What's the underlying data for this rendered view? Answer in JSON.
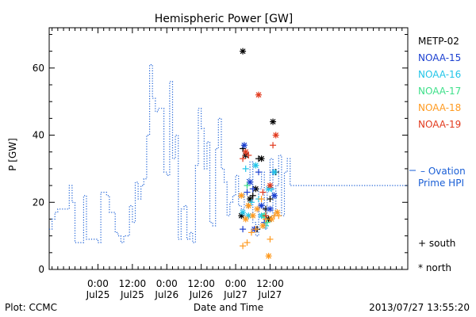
{
  "chart_data": {
    "type": "line",
    "title": "Hemispheric Power [GW]",
    "xlabel": "Date and Time",
    "ylabel": "P [GW]",
    "ylim": [
      0,
      72
    ],
    "xlim_hours": [
      -17,
      108
    ],
    "yticks": [
      0,
      20,
      40,
      60
    ],
    "xticks": [
      {
        "h": 0,
        "line1": "0:00",
        "line2": "Jul25"
      },
      {
        "h": 12,
        "line1": "12:00",
        "line2": "Jul25"
      },
      {
        "h": 24,
        "line1": "0:00",
        "line2": "Jul26"
      },
      {
        "h": 36,
        "line1": "12:00",
        "line2": "Jul26"
      },
      {
        "h": 48,
        "line1": "0:00",
        "line2": "Jul27"
      },
      {
        "h": 60,
        "line1": "12:00",
        "line2": "Jul27"
      }
    ],
    "grid": false,
    "ovation": {
      "name": "Ovation Prime HPI",
      "legend_line1": "– Ovation",
      "legend_line2": "Prime HPI",
      "color": "#1a5fd6",
      "step_points": [
        [
          -17,
          12
        ],
        [
          -16,
          15
        ],
        [
          -15,
          17
        ],
        [
          -14,
          18
        ],
        [
          -13,
          18
        ],
        [
          -11,
          18
        ],
        [
          -10,
          25
        ],
        [
          -9,
          20
        ],
        [
          -8,
          8
        ],
        [
          -6,
          8
        ],
        [
          -5,
          22
        ],
        [
          -4,
          9
        ],
        [
          -1,
          9
        ],
        [
          0,
          8
        ],
        [
          1,
          23
        ],
        [
          3,
          22
        ],
        [
          4,
          17
        ],
        [
          6,
          11
        ],
        [
          7,
          10
        ],
        [
          8,
          8
        ],
        [
          9,
          10
        ],
        [
          11,
          19
        ],
        [
          12,
          14
        ],
        [
          13,
          26
        ],
        [
          14,
          21
        ],
        [
          15,
          25
        ],
        [
          16,
          27
        ],
        [
          17,
          40
        ],
        [
          18,
          61
        ],
        [
          19,
          51
        ],
        [
          20,
          47
        ],
        [
          21,
          48
        ],
        [
          23,
          29
        ],
        [
          24,
          28
        ],
        [
          25,
          56
        ],
        [
          26,
          33
        ],
        [
          27,
          40
        ],
        [
          28,
          9
        ],
        [
          29,
          18
        ],
        [
          30,
          19
        ],
        [
          31,
          9
        ],
        [
          32,
          11
        ],
        [
          33,
          8
        ],
        [
          34,
          31
        ],
        [
          35,
          48
        ],
        [
          36,
          42
        ],
        [
          37,
          30
        ],
        [
          38,
          38
        ],
        [
          39,
          14
        ],
        [
          40,
          13
        ],
        [
          41,
          36
        ],
        [
          42,
          45
        ],
        [
          43,
          30
        ],
        [
          44,
          26
        ],
        [
          45,
          16
        ],
        [
          46,
          20
        ],
        [
          47,
          22
        ],
        [
          48,
          28
        ],
        [
          49,
          19
        ],
        [
          50,
          18
        ],
        [
          51,
          23
        ],
        [
          52,
          27
        ],
        [
          53,
          32
        ],
        [
          54,
          14
        ],
        [
          55,
          10
        ],
        [
          56,
          24
        ],
        [
          57,
          29
        ],
        [
          58,
          12
        ],
        [
          59,
          24
        ],
        [
          60,
          33
        ],
        [
          61,
          16
        ],
        [
          62,
          25
        ],
        [
          63,
          34
        ],
        [
          64,
          16
        ],
        [
          65,
          29
        ],
        [
          66,
          33
        ],
        [
          67,
          25
        ],
        [
          68,
          25
        ]
      ]
    },
    "series": [
      {
        "name": "METP-02",
        "color": "#000000",
        "points": [
          [
            50.5,
            65
          ],
          [
            50.5,
            36
          ],
          [
            51.5,
            34
          ],
          [
            52.5,
            19
          ],
          [
            53,
            21
          ],
          [
            54,
            22
          ],
          [
            55,
            24
          ],
          [
            56,
            33
          ],
          [
            57,
            33
          ],
          [
            58.5,
            18
          ],
          [
            59.5,
            15
          ],
          [
            60,
            21
          ],
          [
            61,
            44
          ],
          [
            62,
            29
          ],
          [
            50,
            16
          ],
          [
            55.5,
            12
          ]
        ]
      },
      {
        "name": "NOAA-15",
        "color": "#1a3fd0",
        "points": [
          [
            50.5,
            12
          ],
          [
            51,
            37
          ],
          [
            52,
            23
          ],
          [
            53,
            26
          ],
          [
            54,
            24
          ],
          [
            54.5,
            12
          ],
          [
            56,
            29
          ],
          [
            57,
            19
          ],
          [
            58,
            14
          ],
          [
            60,
            18
          ],
          [
            61,
            29
          ],
          [
            61.5,
            22
          ]
        ]
      },
      {
        "name": "NOAA-16",
        "color": "#22c5e8",
        "points": [
          [
            50.5,
            17
          ],
          [
            51.5,
            30
          ],
          [
            52.5,
            16
          ],
          [
            53.5,
            20
          ],
          [
            55,
            31
          ],
          [
            56,
            21
          ],
          [
            57,
            16
          ],
          [
            58.5,
            13
          ],
          [
            59.5,
            24
          ],
          [
            60.5,
            24
          ],
          [
            61.5,
            29
          ]
        ]
      },
      {
        "name": "NOAA-17",
        "color": "#3fe08a",
        "points": [
          [
            52,
            25
          ],
          [
            58,
            16
          ],
          [
            59,
            14
          ]
        ]
      },
      {
        "name": "NOAA-18",
        "color": "#ff9a1f",
        "points": [
          [
            50,
            22
          ],
          [
            50.5,
            7
          ],
          [
            51.5,
            15
          ],
          [
            52,
            8
          ],
          [
            52.5,
            19
          ],
          [
            53.5,
            11
          ],
          [
            54,
            16
          ],
          [
            55,
            12
          ],
          [
            55.5,
            18
          ],
          [
            57,
            21
          ],
          [
            57.5,
            13
          ],
          [
            58.5,
            15
          ],
          [
            59.5,
            4
          ],
          [
            60,
            9
          ],
          [
            60.5,
            15
          ],
          [
            61.5,
            16
          ],
          [
            62.5,
            17
          ],
          [
            63,
            16
          ]
        ]
      },
      {
        "name": "NOAA-19",
        "color": "#e23a1e",
        "points": [
          [
            50.5,
            33
          ],
          [
            51.5,
            35
          ],
          [
            52.5,
            34
          ],
          [
            56,
            52
          ],
          [
            57.5,
            23
          ],
          [
            60,
            25
          ],
          [
            61,
            37
          ],
          [
            62,
            40
          ],
          [
            58.5,
            16
          ]
        ]
      }
    ],
    "marker_legend": {
      "south": "+ south",
      "north": "* north"
    }
  },
  "footer": {
    "plot_credit": "Plot: CCMC",
    "timestamp": "2013/07/27 13:55:20"
  }
}
